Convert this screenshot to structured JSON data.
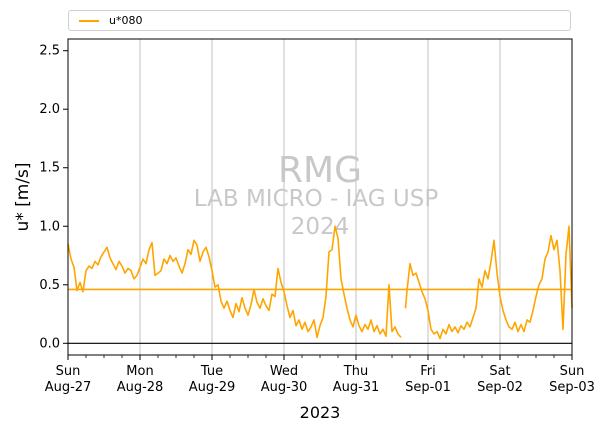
{
  "chart_data": {
    "type": "line",
    "xlabel": "2023",
    "ylabel": "u* [m/s]",
    "ylim": [
      -0.1,
      2.6
    ],
    "yticks": [
      0.0,
      0.5,
      1.0,
      1.5,
      2.0,
      2.5
    ],
    "ytick_labels": [
      "0.0",
      "0.5",
      "1.0",
      "1.5",
      "2.0",
      "2.5"
    ],
    "xlim": [
      "2023-08-27",
      "2023-09-03"
    ],
    "x_ticks": [
      {
        "date": "2023-08-27",
        "line1": "Sun",
        "line2": "Aug-27"
      },
      {
        "date": "2023-08-28",
        "line1": "Mon",
        "line2": "Aug-28"
      },
      {
        "date": "2023-08-29",
        "line1": "Tue",
        "line2": "Aug-29"
      },
      {
        "date": "2023-08-30",
        "line1": "Wed",
        "line2": "Aug-30"
      },
      {
        "date": "2023-08-31",
        "line1": "Thu",
        "line2": "Aug-31"
      },
      {
        "date": "2023-09-01",
        "line1": "Fri",
        "line2": "Sep-01"
      },
      {
        "date": "2023-09-02",
        "line1": "Sat",
        "line2": "Sep-02"
      },
      {
        "date": "2023-09-03",
        "line1": "Sun",
        "line2": "Sep-03"
      }
    ],
    "grid": "vertical",
    "legend_position": "top",
    "zero_line": 0.0,
    "series": [
      {
        "name": "u*080",
        "color": "#FFA500",
        "mean": 0.46,
        "points": [
          [
            "2023-08-27 00:00",
            0.85
          ],
          [
            "2023-08-27 01:00",
            0.72
          ],
          [
            "2023-08-27 02:00",
            0.65
          ],
          [
            "2023-08-27 03:00",
            0.45
          ],
          [
            "2023-08-27 04:00",
            0.52
          ],
          [
            "2023-08-27 05:00",
            0.44
          ],
          [
            "2023-08-27 06:00",
            0.62
          ],
          [
            "2023-08-27 07:00",
            0.66
          ],
          [
            "2023-08-27 08:00",
            0.64
          ],
          [
            "2023-08-27 09:00",
            0.7
          ],
          [
            "2023-08-27 10:00",
            0.67
          ],
          [
            "2023-08-27 11:00",
            0.74
          ],
          [
            "2023-08-27 12:00",
            0.78
          ],
          [
            "2023-08-27 13:00",
            0.82
          ],
          [
            "2023-08-27 14:00",
            0.73
          ],
          [
            "2023-08-27 15:00",
            0.68
          ],
          [
            "2023-08-27 16:00",
            0.63
          ],
          [
            "2023-08-27 17:00",
            0.7
          ],
          [
            "2023-08-27 18:00",
            0.66
          ],
          [
            "2023-08-27 19:00",
            0.6
          ],
          [
            "2023-08-27 20:00",
            0.64
          ],
          [
            "2023-08-27 21:00",
            0.62
          ],
          [
            "2023-08-27 22:00",
            0.55
          ],
          [
            "2023-08-27 23:00",
            0.58
          ],
          [
            "2023-08-28 00:00",
            0.65
          ],
          [
            "2023-08-28 01:00",
            0.72
          ],
          [
            "2023-08-28 02:00",
            0.68
          ],
          [
            "2023-08-28 03:00",
            0.8
          ],
          [
            "2023-08-28 04:00",
            0.86
          ],
          [
            "2023-08-28 05:00",
            0.58
          ],
          [
            "2023-08-28 06:00",
            0.6
          ],
          [
            "2023-08-28 07:00",
            0.62
          ],
          [
            "2023-08-28 08:00",
            0.72
          ],
          [
            "2023-08-28 09:00",
            0.68
          ],
          [
            "2023-08-28 10:00",
            0.75
          ],
          [
            "2023-08-28 11:00",
            0.7
          ],
          [
            "2023-08-28 12:00",
            0.73
          ],
          [
            "2023-08-28 13:00",
            0.66
          ],
          [
            "2023-08-28 14:00",
            0.6
          ],
          [
            "2023-08-28 15:00",
            0.68
          ],
          [
            "2023-08-28 16:00",
            0.8
          ],
          [
            "2023-08-28 17:00",
            0.76
          ],
          [
            "2023-08-28 18:00",
            0.88
          ],
          [
            "2023-08-28 19:00",
            0.84
          ],
          [
            "2023-08-28 20:00",
            0.7
          ],
          [
            "2023-08-28 21:00",
            0.78
          ],
          [
            "2023-08-28 22:00",
            0.82
          ],
          [
            "2023-08-28 23:00",
            0.74
          ],
          [
            "2023-08-29 00:00",
            0.62
          ],
          [
            "2023-08-29 01:00",
            0.48
          ],
          [
            "2023-08-29 02:00",
            0.5
          ],
          [
            "2023-08-29 03:00",
            0.36
          ],
          [
            "2023-08-29 04:00",
            0.3
          ],
          [
            "2023-08-29 05:00",
            0.36
          ],
          [
            "2023-08-29 06:00",
            0.28
          ],
          [
            "2023-08-29 07:00",
            0.22
          ],
          [
            "2023-08-29 08:00",
            0.34
          ],
          [
            "2023-08-29 09:00",
            0.27
          ],
          [
            "2023-08-29 10:00",
            0.39
          ],
          [
            "2023-08-29 11:00",
            0.3
          ],
          [
            "2023-08-29 12:00",
            0.24
          ],
          [
            "2023-08-29 13:00",
            0.33
          ],
          [
            "2023-08-29 14:00",
            0.46
          ],
          [
            "2023-08-29 15:00",
            0.35
          ],
          [
            "2023-08-29 16:00",
            0.3
          ],
          [
            "2023-08-29 17:00",
            0.38
          ],
          [
            "2023-08-29 18:00",
            0.32
          ],
          [
            "2023-08-29 19:00",
            0.28
          ],
          [
            "2023-08-29 20:00",
            0.42
          ],
          [
            "2023-08-29 21:00",
            0.4
          ],
          [
            "2023-08-29 22:00",
            0.64
          ],
          [
            "2023-08-29 23:00",
            0.52
          ],
          [
            "2023-08-30 00:00",
            0.44
          ],
          [
            "2023-08-30 01:00",
            0.32
          ],
          [
            "2023-08-30 02:00",
            0.22
          ],
          [
            "2023-08-30 03:00",
            0.28
          ],
          [
            "2023-08-30 04:00",
            0.15
          ],
          [
            "2023-08-30 05:00",
            0.2
          ],
          [
            "2023-08-30 06:00",
            0.12
          ],
          [
            "2023-08-30 07:00",
            0.18
          ],
          [
            "2023-08-30 08:00",
            0.1
          ],
          [
            "2023-08-30 09:00",
            0.14
          ],
          [
            "2023-08-30 10:00",
            0.2
          ],
          [
            "2023-08-30 11:00",
            0.05
          ],
          [
            "2023-08-30 12:00",
            0.15
          ],
          [
            "2023-08-30 13:00",
            0.22
          ],
          [
            "2023-08-30 14:00",
            0.4
          ],
          [
            "2023-08-30 15:00",
            0.78
          ],
          [
            "2023-08-30 16:00",
            0.8
          ],
          [
            "2023-08-30 17:00",
            1.0
          ],
          [
            "2023-08-30 18:00",
            0.9
          ],
          [
            "2023-08-30 19:00",
            0.55
          ],
          [
            "2023-08-30 20:00",
            0.42
          ],
          [
            "2023-08-30 21:00",
            0.3
          ],
          [
            "2023-08-30 22:00",
            0.2
          ],
          [
            "2023-08-30 23:00",
            0.14
          ],
          [
            "2023-08-31 00:00",
            0.24
          ],
          [
            "2023-08-31 01:00",
            0.15
          ],
          [
            "2023-08-31 02:00",
            0.1
          ],
          [
            "2023-08-31 03:00",
            0.16
          ],
          [
            "2023-08-31 04:00",
            0.12
          ],
          [
            "2023-08-31 05:00",
            0.2
          ],
          [
            "2023-08-31 06:00",
            0.1
          ],
          [
            "2023-08-31 07:00",
            0.15
          ],
          [
            "2023-08-31 08:00",
            0.08
          ],
          [
            "2023-08-31 09:00",
            0.12
          ],
          [
            "2023-08-31 10:00",
            0.06
          ],
          [
            "2023-08-31 11:00",
            0.5
          ],
          [
            "2023-08-31 12:00",
            0.1
          ],
          [
            "2023-08-31 13:00",
            0.14
          ],
          [
            "2023-08-31 14:00",
            0.08
          ],
          [
            "2023-08-31 15:00",
            0.05
          ]
        ],
        "points_b": [
          [
            "2023-08-31 16:30",
            0.3
          ],
          [
            "2023-08-31 17:00",
            0.45
          ],
          [
            "2023-08-31 18:00",
            0.68
          ],
          [
            "2023-08-31 19:00",
            0.58
          ],
          [
            "2023-08-31 20:00",
            0.6
          ],
          [
            "2023-08-31 21:00",
            0.52
          ],
          [
            "2023-08-31 22:00",
            0.44
          ],
          [
            "2023-08-31 23:00",
            0.38
          ],
          [
            "2023-09-01 00:00",
            0.28
          ],
          [
            "2023-09-01 01:00",
            0.12
          ],
          [
            "2023-09-01 02:00",
            0.08
          ],
          [
            "2023-09-01 03:00",
            0.1
          ],
          [
            "2023-09-01 04:00",
            0.04
          ],
          [
            "2023-09-01 05:00",
            0.12
          ],
          [
            "2023-09-01 06:00",
            0.08
          ],
          [
            "2023-09-01 07:00",
            0.16
          ],
          [
            "2023-09-01 08:00",
            0.1
          ],
          [
            "2023-09-01 09:00",
            0.14
          ],
          [
            "2023-09-01 10:00",
            0.09
          ],
          [
            "2023-09-01 11:00",
            0.15
          ],
          [
            "2023-09-01 12:00",
            0.12
          ],
          [
            "2023-09-01 13:00",
            0.18
          ],
          [
            "2023-09-01 14:00",
            0.14
          ],
          [
            "2023-09-01 15:00",
            0.22
          ],
          [
            "2023-09-01 16:00",
            0.3
          ],
          [
            "2023-09-01 17:00",
            0.55
          ],
          [
            "2023-09-01 18:00",
            0.48
          ],
          [
            "2023-09-01 19:00",
            0.62
          ],
          [
            "2023-09-01 20:00",
            0.55
          ],
          [
            "2023-09-01 21:00",
            0.7
          ],
          [
            "2023-09-01 22:00",
            0.88
          ],
          [
            "2023-09-01 23:00",
            0.6
          ],
          [
            "2023-09-02 00:00",
            0.4
          ],
          [
            "2023-09-02 01:00",
            0.28
          ],
          [
            "2023-09-02 02:00",
            0.2
          ],
          [
            "2023-09-02 03:00",
            0.14
          ],
          [
            "2023-09-02 04:00",
            0.12
          ],
          [
            "2023-09-02 05:00",
            0.18
          ],
          [
            "2023-09-02 06:00",
            0.1
          ],
          [
            "2023-09-02 07:00",
            0.16
          ],
          [
            "2023-09-02 08:00",
            0.1
          ],
          [
            "2023-09-02 09:00",
            0.2
          ],
          [
            "2023-09-02 10:00",
            0.18
          ],
          [
            "2023-09-02 11:00",
            0.28
          ],
          [
            "2023-09-02 12:00",
            0.4
          ],
          [
            "2023-09-02 13:00",
            0.5
          ],
          [
            "2023-09-02 14:00",
            0.55
          ],
          [
            "2023-09-02 15:00",
            0.72
          ],
          [
            "2023-09-02 16:00",
            0.78
          ],
          [
            "2023-09-02 17:00",
            0.92
          ],
          [
            "2023-09-02 18:00",
            0.8
          ],
          [
            "2023-09-02 19:00",
            0.88
          ],
          [
            "2023-09-02 20:00",
            0.62
          ],
          [
            "2023-09-02 21:00",
            0.12
          ],
          [
            "2023-09-02 22:00",
            0.76
          ],
          [
            "2023-09-02 23:00",
            1.0
          ],
          [
            "2023-09-03 00:00",
            0.3
          ]
        ]
      }
    ]
  },
  "watermark": {
    "line1": "RMG",
    "line2": "LAB MICRO - IAG USP",
    "line3": "2024"
  }
}
